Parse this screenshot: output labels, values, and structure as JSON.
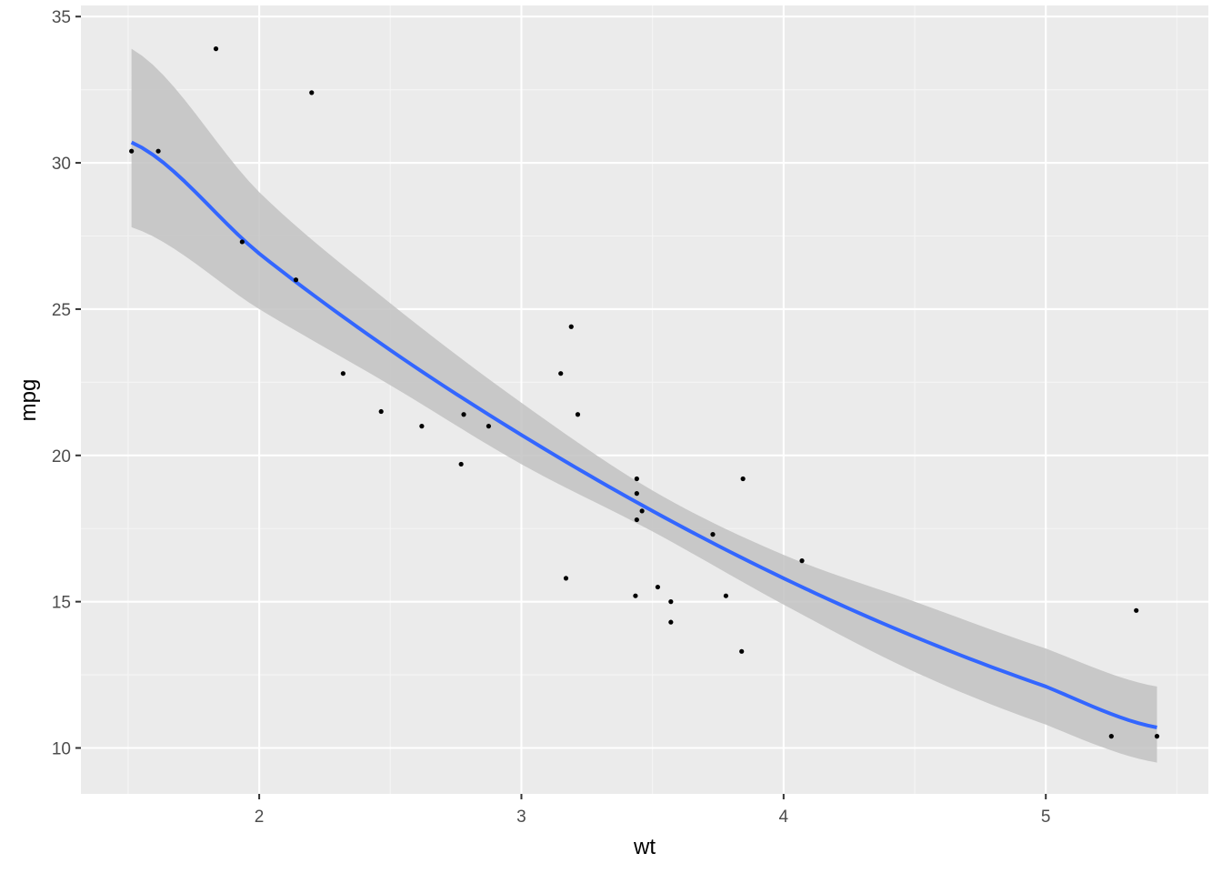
{
  "chart_data": {
    "type": "scatter",
    "xlabel": "wt",
    "ylabel": "mpg",
    "xlim": [
      1.32,
      5.62
    ],
    "ylim": [
      8.43,
      35.38
    ],
    "x_ticks": [
      2,
      3,
      4,
      5
    ],
    "y_ticks": [
      10,
      15,
      20,
      25,
      30,
      35
    ],
    "x_tick_labels": [
      "2",
      "3",
      "4",
      "5"
    ],
    "y_tick_labels": [
      "10",
      "15",
      "20",
      "25",
      "30",
      "35"
    ],
    "grid": true,
    "legend": "none",
    "colors": {
      "panel_background": "#ebebeb",
      "grid_major": "#ffffff",
      "grid_minor": "#f5f5f5",
      "points": "#000000",
      "fit_line": "#3366ff",
      "confidence_band": "#c0c0c0"
    },
    "points": {
      "x": [
        2.62,
        2.875,
        2.32,
        3.215,
        3.44,
        3.46,
        3.57,
        3.19,
        3.15,
        3.44,
        3.44,
        4.07,
        3.73,
        3.78,
        5.25,
        5.424,
        5.345,
        2.2,
        1.615,
        1.835,
        2.465,
        3.52,
        3.435,
        3.84,
        3.845,
        1.935,
        2.14,
        1.513,
        3.17,
        2.77,
        3.57,
        2.78
      ],
      "y": [
        21.0,
        21.0,
        22.8,
        21.4,
        18.7,
        18.1,
        14.3,
        24.4,
        22.8,
        19.2,
        17.8,
        16.4,
        17.3,
        15.2,
        10.4,
        10.4,
        14.7,
        32.4,
        30.4,
        33.9,
        21.5,
        15.5,
        15.2,
        13.3,
        19.2,
        27.3,
        26.0,
        30.4,
        15.8,
        19.7,
        15.0,
        21.4
      ]
    },
    "fit": {
      "x": [
        1.513,
        2.0,
        2.5,
        3.0,
        3.5,
        4.0,
        4.5,
        5.0,
        5.424
      ],
      "y": [
        30.7,
        26.9,
        23.6,
        20.7,
        18.1,
        15.8,
        13.8,
        12.1,
        10.7
      ],
      "lower": [
        27.8,
        25.0,
        22.4,
        19.7,
        17.4,
        14.9,
        12.6,
        10.8,
        9.5
      ],
      "upper": [
        33.9,
        29.0,
        25.2,
        21.8,
        18.8,
        16.6,
        15.0,
        13.4,
        12.1
      ]
    }
  }
}
